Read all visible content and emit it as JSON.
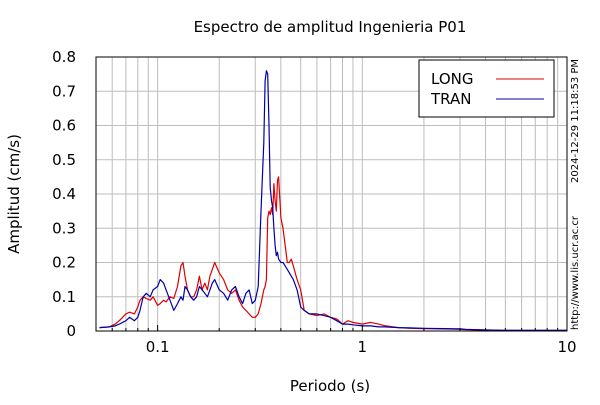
{
  "chart_data": {
    "type": "line",
    "title": "Espectro de amplitud Ingenieria P01",
    "xlabel": "Periodo (s)",
    "ylabel": "Amplitud (cm/s)",
    "x_scale": "log",
    "xlim": [
      0.05,
      10
    ],
    "ylim": [
      0,
      0.8
    ],
    "grid": true,
    "legend_position": "top-right",
    "x_ticks": [
      {
        "value": 0.1,
        "label": "0.1"
      },
      {
        "value": 1,
        "label": "1"
      },
      {
        "value": 10,
        "label": "10"
      }
    ],
    "y_ticks": [
      {
        "value": 0,
        "label": "0"
      },
      {
        "value": 0.1,
        "label": "0.1"
      },
      {
        "value": 0.2,
        "label": "0.2"
      },
      {
        "value": 0.3,
        "label": "0.3"
      },
      {
        "value": 0.4,
        "label": "0.4"
      },
      {
        "value": 0.5,
        "label": "0.5"
      },
      {
        "value": 0.6,
        "label": "0.6"
      },
      {
        "value": 0.7,
        "label": "0.7"
      },
      {
        "value": 0.8,
        "label": "0.8"
      }
    ],
    "series": [
      {
        "name": "LONG",
        "color": "#dd0000",
        "x": [
          0.052,
          0.058,
          0.062,
          0.065,
          0.07,
          0.073,
          0.077,
          0.08,
          0.082,
          0.085,
          0.088,
          0.092,
          0.095,
          0.1,
          0.103,
          0.107,
          0.11,
          0.115,
          0.12,
          0.125,
          0.13,
          0.133,
          0.136,
          0.14,
          0.145,
          0.15,
          0.155,
          0.16,
          0.165,
          0.17,
          0.175,
          0.18,
          0.185,
          0.19,
          0.2,
          0.21,
          0.22,
          0.23,
          0.24,
          0.25,
          0.26,
          0.27,
          0.28,
          0.29,
          0.3,
          0.31,
          0.32,
          0.33,
          0.335,
          0.34,
          0.345,
          0.35,
          0.355,
          0.36,
          0.365,
          0.37,
          0.375,
          0.38,
          0.385,
          0.39,
          0.4,
          0.41,
          0.42,
          0.43,
          0.44,
          0.45,
          0.46,
          0.48,
          0.5,
          0.52,
          0.55,
          0.6,
          0.65,
          0.7,
          0.75,
          0.8,
          0.85,
          0.9,
          1.0,
          1.1,
          1.2,
          1.3,
          1.5,
          1.7,
          2.0,
          2.5,
          3.0,
          3.2,
          4.0,
          5.0,
          7.0,
          10.0
        ],
        "values": [
          0.01,
          0.012,
          0.02,
          0.03,
          0.05,
          0.055,
          0.05,
          0.07,
          0.09,
          0.1,
          0.095,
          0.09,
          0.1,
          0.075,
          0.08,
          0.09,
          0.085,
          0.1,
          0.095,
          0.13,
          0.19,
          0.2,
          0.16,
          0.12,
          0.1,
          0.1,
          0.12,
          0.16,
          0.12,
          0.14,
          0.12,
          0.16,
          0.18,
          0.2,
          0.17,
          0.15,
          0.12,
          0.11,
          0.12,
          0.09,
          0.07,
          0.06,
          0.05,
          0.04,
          0.04,
          0.05,
          0.08,
          0.12,
          0.13,
          0.15,
          0.33,
          0.35,
          0.34,
          0.36,
          0.34,
          0.43,
          0.38,
          0.35,
          0.44,
          0.45,
          0.33,
          0.3,
          0.25,
          0.2,
          0.2,
          0.21,
          0.19,
          0.15,
          0.12,
          0.06,
          0.05,
          0.045,
          0.05,
          0.04,
          0.035,
          0.02,
          0.03,
          0.025,
          0.02,
          0.025,
          0.02,
          0.015,
          0.01,
          0.008,
          0.007,
          0.006,
          0.005,
          0.004,
          0.003,
          0.002,
          0.002,
          0.002
        ]
      },
      {
        "name": "TRAN",
        "color": "#0000aa",
        "x": [
          0.052,
          0.058,
          0.062,
          0.065,
          0.07,
          0.073,
          0.077,
          0.08,
          0.082,
          0.085,
          0.088,
          0.092,
          0.095,
          0.1,
          0.103,
          0.107,
          0.11,
          0.115,
          0.12,
          0.125,
          0.13,
          0.133,
          0.136,
          0.14,
          0.145,
          0.15,
          0.155,
          0.16,
          0.165,
          0.17,
          0.175,
          0.18,
          0.185,
          0.19,
          0.2,
          0.21,
          0.22,
          0.23,
          0.24,
          0.25,
          0.26,
          0.27,
          0.28,
          0.29,
          0.3,
          0.31,
          0.32,
          0.33,
          0.335,
          0.34,
          0.345,
          0.35,
          0.355,
          0.36,
          0.365,
          0.37,
          0.375,
          0.38,
          0.385,
          0.39,
          0.4,
          0.41,
          0.42,
          0.43,
          0.44,
          0.45,
          0.46,
          0.48,
          0.5,
          0.52,
          0.55,
          0.6,
          0.65,
          0.7,
          0.75,
          0.8,
          0.85,
          0.9,
          1.0,
          1.1,
          1.2,
          1.3,
          1.5,
          1.7,
          2.0,
          2.5,
          3.0,
          3.2,
          4.0,
          5.0,
          7.0,
          10.0
        ],
        "values": [
          0.01,
          0.012,
          0.015,
          0.02,
          0.03,
          0.04,
          0.03,
          0.04,
          0.06,
          0.1,
          0.11,
          0.1,
          0.12,
          0.13,
          0.15,
          0.14,
          0.12,
          0.09,
          0.06,
          0.08,
          0.1,
          0.09,
          0.13,
          0.12,
          0.1,
          0.09,
          0.1,
          0.13,
          0.12,
          0.11,
          0.1,
          0.12,
          0.14,
          0.15,
          0.12,
          0.11,
          0.09,
          0.12,
          0.13,
          0.1,
          0.08,
          0.11,
          0.12,
          0.08,
          0.09,
          0.13,
          0.35,
          0.55,
          0.73,
          0.76,
          0.75,
          0.6,
          0.42,
          0.38,
          0.36,
          0.3,
          0.25,
          0.22,
          0.23,
          0.21,
          0.2,
          0.2,
          0.19,
          0.18,
          0.17,
          0.16,
          0.15,
          0.12,
          0.07,
          0.06,
          0.05,
          0.05,
          0.045,
          0.04,
          0.03,
          0.02,
          0.02,
          0.018,
          0.015,
          0.015,
          0.012,
          0.012,
          0.01,
          0.009,
          0.008,
          0.007,
          0.006,
          0.005,
          0.003,
          0.002,
          0.002,
          0.002
        ]
      }
    ]
  },
  "side_text": {
    "timestamp": "2024-12-29 11:18:53 PM",
    "url": "http://www.lis.ucr.ac.cr"
  }
}
